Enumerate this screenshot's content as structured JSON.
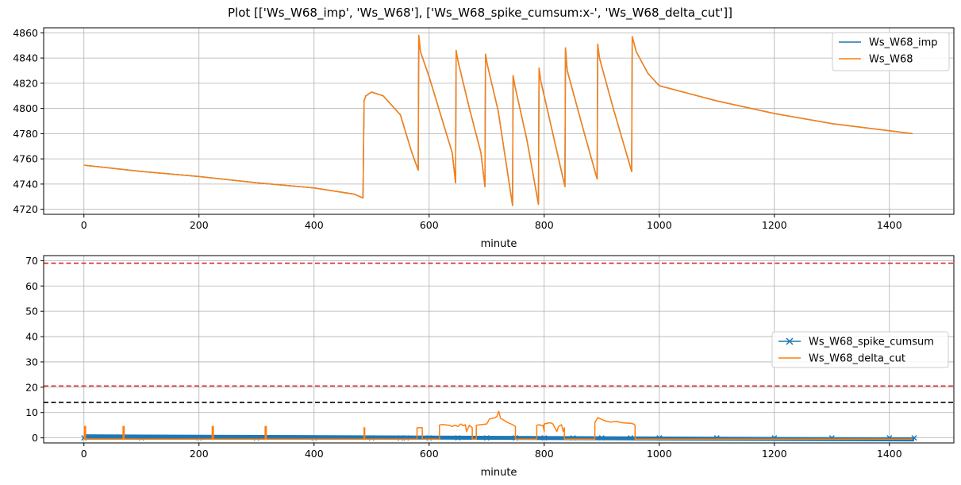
{
  "figure": {
    "title": "Plot [['Ws_W68_imp', 'Ws_W68'], ['Ws_W68_spike_cumsum:x-', 'Ws_W68_delta_cut']]"
  },
  "colors": {
    "blue": "#1f77b4",
    "orange": "#ff7f0e",
    "red": "#d62728",
    "black": "#000000",
    "grid": "#b0b0b0"
  },
  "chart_data": [
    {
      "type": "line",
      "xlabel": "minute",
      "ylabel": "",
      "xlim": [
        -70,
        1512
      ],
      "ylim": [
        4716,
        4864
      ],
      "xticks": [
        0,
        200,
        400,
        600,
        800,
        1000,
        1200,
        1400
      ],
      "yticks": [
        4720,
        4740,
        4760,
        4780,
        4800,
        4820,
        4840,
        4860
      ],
      "grid": true,
      "legend_position": "top-right",
      "series": [
        {
          "name": "Ws_W68_imp",
          "color": "#1f77b4",
          "x": [
            0,
            100,
            200,
            300,
            400,
            470,
            485,
            487,
            490,
            500,
            520,
            550,
            570,
            581,
            582,
            585,
            600,
            620,
            640,
            646,
            647,
            650,
            670,
            690,
            697,
            698,
            701,
            720,
            745,
            746,
            749,
            770,
            790,
            791,
            794,
            820,
            836,
            837,
            840,
            870,
            892,
            893,
            896,
            920,
            952,
            953,
            960,
            980,
            1000,
            1100,
            1200,
            1300,
            1440
          ],
          "y": [
            4755,
            4750,
            4746,
            4741,
            4737,
            4732,
            4729,
            4806,
            4810,
            4813,
            4810,
            4795,
            4765,
            4751,
            4858,
            4845,
            4825,
            4795,
            4765,
            4741,
            4846,
            4838,
            4800,
            4765,
            4738,
            4843,
            4835,
            4798,
            4723,
            4826,
            4818,
            4775,
            4724,
            4832,
            4822,
            4770,
            4738,
            4848,
            4830,
            4780,
            4744,
            4851,
            4840,
            4800,
            4750,
            4857,
            4845,
            4828,
            4818,
            4806,
            4796,
            4788,
            4780
          ]
        },
        {
          "name": "Ws_W68",
          "color": "#ff7f0e",
          "x": [
            0,
            100,
            200,
            300,
            400,
            470,
            485,
            487,
            490,
            500,
            520,
            550,
            570,
            581,
            582,
            585,
            600,
            620,
            640,
            646,
            647,
            650,
            670,
            690,
            697,
            698,
            701,
            720,
            745,
            746,
            749,
            770,
            790,
            791,
            794,
            820,
            836,
            837,
            840,
            870,
            892,
            893,
            896,
            920,
            952,
            953,
            960,
            980,
            1000,
            1100,
            1200,
            1300,
            1440
          ],
          "y": [
            4755,
            4750,
            4746,
            4741,
            4737,
            4732,
            4729,
            4806,
            4810,
            4813,
            4810,
            4795,
            4765,
            4751,
            4858,
            4845,
            4825,
            4795,
            4765,
            4741,
            4846,
            4838,
            4800,
            4765,
            4738,
            4843,
            4835,
            4798,
            4723,
            4826,
            4818,
            4775,
            4724,
            4832,
            4822,
            4770,
            4738,
            4848,
            4830,
            4780,
            4744,
            4851,
            4840,
            4800,
            4750,
            4857,
            4845,
            4828,
            4818,
            4806,
            4796,
            4788,
            4780
          ]
        }
      ]
    },
    {
      "type": "line",
      "xlabel": "minute",
      "ylabel": "",
      "xlim": [
        -70,
        1512
      ],
      "ylim": [
        -2,
        72
      ],
      "xticks": [
        0,
        200,
        400,
        600,
        800,
        1000,
        1200,
        1400
      ],
      "yticks": [
        0,
        10,
        20,
        30,
        40,
        50,
        60,
        70
      ],
      "grid": true,
      "legend_position": "center-right",
      "hlines": [
        {
          "y": 69,
          "color": "#d62728",
          "style": "dashed"
        },
        {
          "y": 20.5,
          "color": "#d62728",
          "style": "dashed"
        },
        {
          "y": 14,
          "color": "#000000",
          "style": "dashed"
        }
      ],
      "series": [
        {
          "name": "Ws_W68_spike_cumsum",
          "color": "#1f77b4",
          "marker": "x",
          "x": [
            0,
            100,
            200,
            300,
            400,
            500,
            550,
            560,
            600,
            650,
            700,
            750,
            800,
            850,
            900,
            950,
            1000,
            1100,
            1200,
            1300,
            1400,
            1443
          ],
          "y": [
            0,
            0,
            0,
            0,
            0,
            0,
            0,
            0,
            0,
            0,
            0,
            0,
            0,
            0,
            0,
            0,
            0,
            0,
            0,
            0,
            0,
            0
          ]
        },
        {
          "name": "Ws_W68_delta_cut",
          "color": "#ff7f0e",
          "x": [
            0,
            1,
            1,
            3,
            3,
            68,
            68,
            70,
            70,
            223,
            223,
            225,
            225,
            315,
            315,
            317,
            317,
            487,
            487,
            488,
            488,
            579,
            579,
            588,
            588,
            618,
            618,
            622,
            635,
            640,
            645,
            650,
            655,
            660,
            663,
            665,
            670,
            675,
            675,
            682,
            682,
            700,
            705,
            715,
            718,
            721,
            724,
            735,
            745,
            750,
            750,
            787,
            787,
            792,
            795,
            798,
            800,
            800,
            810,
            812,
            815,
            822,
            825,
            830,
            833,
            835,
            835,
            888,
            888,
            893,
            898,
            905,
            915,
            925,
            935,
            945,
            950,
            955,
            958,
            958,
            1440
          ],
          "y": [
            -0.5,
            -0.5,
            4.5,
            4.5,
            -0.5,
            -0.5,
            4.5,
            4.5,
            -0.5,
            -0.5,
            4.5,
            4.5,
            -0.5,
            -0.5,
            4.5,
            4.5,
            -0.5,
            -0.5,
            4,
            4,
            -0.5,
            -0.5,
            4,
            4,
            -0.5,
            -0.5,
            5,
            5.3,
            5,
            4.5,
            5,
            4.5,
            5.5,
            4.8,
            5.2,
            2.5,
            5,
            4,
            -0.5,
            -0.5,
            5,
            5.5,
            7.5,
            8,
            8.5,
            10.5,
            7.8,
            6.2,
            5.2,
            4.5,
            -0.5,
            -0.5,
            5,
            5.2,
            4.8,
            5,
            2.5,
            5.5,
            6,
            5.8,
            5.5,
            2.5,
            4.5,
            5.2,
            2.5,
            4,
            -0.5,
            -0.5,
            6,
            8,
            7.5,
            6.8,
            6.2,
            6.5,
            6,
            5.8,
            5.8,
            5.5,
            5,
            -0.5,
            -0.5
          ]
        }
      ]
    }
  ]
}
